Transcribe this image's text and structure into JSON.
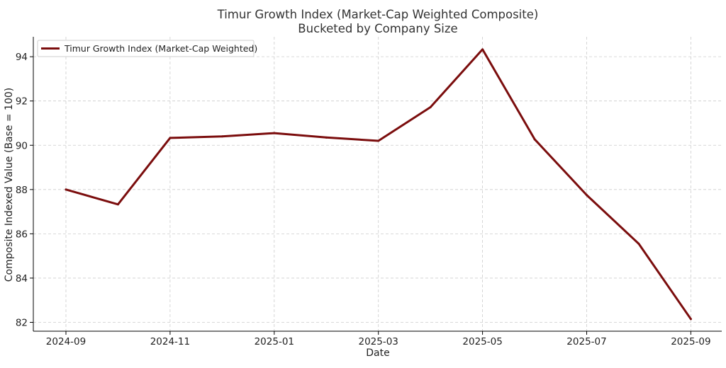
{
  "chart_data": {
    "type": "line",
    "title": "Timur Growth Index (Market-Cap Weighted Composite)",
    "subtitle": "Bucketed by Company Size",
    "xlabel": "Date",
    "ylabel": "Composite Indexed Value (Base = 100)",
    "x": [
      "2024-09",
      "2024-10",
      "2024-11",
      "2024-12",
      "2025-01",
      "2025-02",
      "2025-03",
      "2025-04",
      "2025-05",
      "2025-06",
      "2025-07",
      "2025-08",
      "2025-09"
    ],
    "x_ticks": [
      "2024-09",
      "2024-11",
      "2025-01",
      "2025-03",
      "2025-05",
      "2025-07",
      "2025-09"
    ],
    "ylim": [
      81.6,
      94.9
    ],
    "y_ticks": [
      82,
      84,
      86,
      88,
      90,
      92,
      94
    ],
    "grid": true,
    "legend_position": "top-left",
    "series": [
      {
        "name": "Timur Growth Index (Market-Cap Weighted)",
        "color": "#7b0d0d",
        "values": [
          88.0,
          87.33,
          90.33,
          90.4,
          90.55,
          90.35,
          90.2,
          91.72,
          94.33,
          90.27,
          87.75,
          85.55,
          82.15
        ]
      }
    ]
  }
}
